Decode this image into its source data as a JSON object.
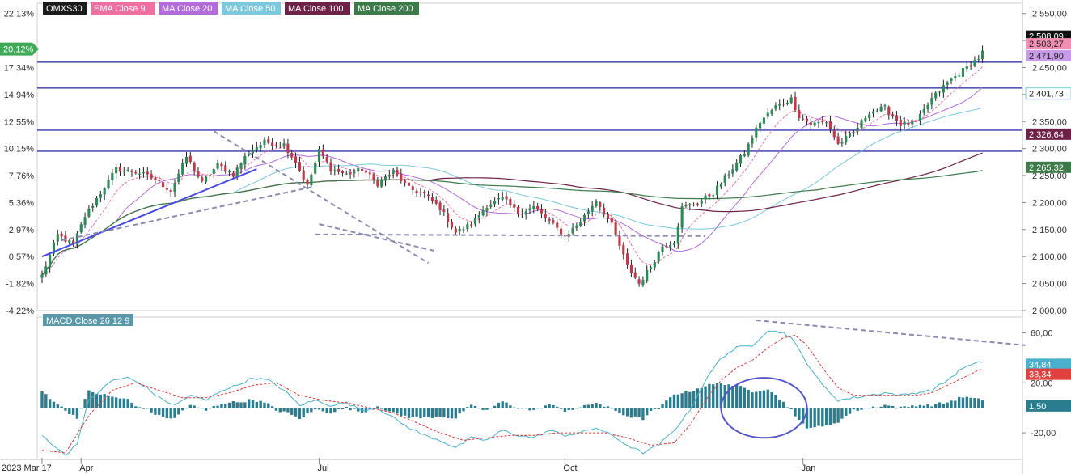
{
  "legend": {
    "items": [
      {
        "label": "OMXS30",
        "color": "#000000"
      },
      {
        "label": "EMA Close 9",
        "color": "#ee6fa0"
      },
      {
        "label": "MA Close 20",
        "color": "#b26bd9"
      },
      {
        "label": "MA Close 50",
        "color": "#7cc8dc"
      },
      {
        "label": "MA Close 100",
        "color": "#6e2146"
      },
      {
        "label": "MA Close 200",
        "color": "#3d7a4a"
      }
    ]
  },
  "macd_legend": {
    "label": "MACD Close 26 12 9",
    "color": "#5a97a8"
  },
  "colors": {
    "candle_up": "#2e8b57",
    "candle_down": "#c0394b",
    "wick": "#222222",
    "hline": "#5555bb",
    "trendline": "#4a4ae0",
    "dashed": "#8a8ab0",
    "macd_line": "#4ab0cc",
    "signal_line": "#d83a3a",
    "histogram": "#2a7d8e"
  },
  "chart_data": [
    {
      "type": "candlestick",
      "title": "OMXS30",
      "yaxis_right_ticks": [
        "2 550,00",
        "2 500,00",
        "2 450,00",
        "2 400,00",
        "2 350,00",
        "2 300,00",
        "2 250,00",
        "2 200,00",
        "2 150,00",
        "2 100,00",
        "2 050,00",
        "2 000,00"
      ],
      "yaxis_right_values": [
        2550,
        2500,
        2450,
        2400,
        2350,
        2300,
        2250,
        2200,
        2150,
        2100,
        2050,
        2000
      ],
      "yaxis_left_ticks": [
        "22,13%",
        "17,34%",
        "14,94%",
        "12,55%",
        "10,15%",
        "7,76%",
        "5,36%",
        "2,97%",
        "0,57%",
        "-1,82%",
        "-4,22%"
      ],
      "yaxis_left_values": [
        2550,
        2450,
        2400,
        2350,
        2300,
        2250,
        2200,
        2150,
        2100,
        2050,
        2000
      ],
      "current_pct_label": "20,12%",
      "ylim": [
        2000,
        2560
      ],
      "xaxis_labels": [
        {
          "label": "2023 Mar 17",
          "index": 0
        },
        {
          "label": "Apr",
          "index": 10
        },
        {
          "label": "Jul",
          "index": 71
        },
        {
          "label": "Oct",
          "index": 134
        },
        {
          "label": "Jan",
          "index": 195
        }
      ],
      "n_bars": 242,
      "anchors": [
        [
          0,
          2065
        ],
        [
          4,
          2140
        ],
        [
          8,
          2122
        ],
        [
          11,
          2175
        ],
        [
          15,
          2218
        ],
        [
          19,
          2262
        ],
        [
          25,
          2255
        ],
        [
          29,
          2242
        ],
        [
          33,
          2222
        ],
        [
          37,
          2285
        ],
        [
          41,
          2236
        ],
        [
          45,
          2270
        ],
        [
          49,
          2252
        ],
        [
          53,
          2295
        ],
        [
          57,
          2312
        ],
        [
          62,
          2308
        ],
        [
          65,
          2275
        ],
        [
          68,
          2230
        ],
        [
          71,
          2296
        ],
        [
          74,
          2262
        ],
        [
          78,
          2252
        ],
        [
          82,
          2262
        ],
        [
          86,
          2235
        ],
        [
          90,
          2258
        ],
        [
          94,
          2226
        ],
        [
          98,
          2215
        ],
        [
          102,
          2190
        ],
        [
          106,
          2145
        ],
        [
          110,
          2160
        ],
        [
          114,
          2195
        ],
        [
          118,
          2208
        ],
        [
          122,
          2180
        ],
        [
          126,
          2192
        ],
        [
          130,
          2165
        ],
        [
          134,
          2138
        ],
        [
          138,
          2165
        ],
        [
          142,
          2205
        ],
        [
          146,
          2158
        ],
        [
          150,
          2082
        ],
        [
          153,
          2050
        ],
        [
          156,
          2082
        ],
        [
          159,
          2120
        ],
        [
          162,
          2128
        ],
        [
          164,
          2190
        ],
        [
          168,
          2200
        ],
        [
          172,
          2218
        ],
        [
          176,
          2255
        ],
        [
          180,
          2292
        ],
        [
          184,
          2350
        ],
        [
          188,
          2378
        ],
        [
          192,
          2392
        ],
        [
          194,
          2360
        ],
        [
          197,
          2345
        ],
        [
          201,
          2350
        ],
        [
          204,
          2308
        ],
        [
          208,
          2330
        ],
        [
          212,
          2368
        ],
        [
          216,
          2375
        ],
        [
          220,
          2345
        ],
        [
          224,
          2348
        ],
        [
          228,
          2392
        ],
        [
          232,
          2422
        ],
        [
          236,
          2445
        ],
        [
          240,
          2468
        ],
        [
          243,
          2498
        ],
        [
          246,
          2532
        ],
        [
          248,
          2508
        ]
      ],
      "current_price": "2 508,09",
      "value_tags": [
        {
          "label": "2 508,09",
          "value": 2508.09,
          "series": "OMXS30"
        },
        {
          "label": "2 503,27",
          "value": 2494,
          "series": "EMA Close 9"
        },
        {
          "label": "2 471,90",
          "value": 2471.9,
          "series": "MA Close 20"
        },
        {
          "label": "2 401,73",
          "value": 2401.73,
          "series": "MA Close 50"
        },
        {
          "label": "2 326,64",
          "value": 2326.64,
          "series": "MA Close 100"
        },
        {
          "label": "2 265,32",
          "value": 2265.32,
          "series": "MA Close 200"
        }
      ],
      "horizontal_lines": [
        2460,
        2412,
        2334,
        2295
      ],
      "trendlines": [
        {
          "style": "solid",
          "points": [
            [
              0,
              2100
            ],
            [
              55,
              2262
            ]
          ]
        },
        {
          "style": "dashed",
          "points": [
            [
              5,
              2130
            ],
            [
              70,
              2230
            ]
          ]
        },
        {
          "style": "dashed",
          "points": [
            [
              44,
              2332
            ],
            [
              99,
              2088
            ]
          ]
        },
        {
          "style": "dashed",
          "points": [
            [
              71,
              2160
            ],
            [
              101,
              2110
            ]
          ]
        },
        {
          "style": "dashed",
          "points": [
            [
              70,
              2141
            ],
            [
              170,
              2138
            ]
          ]
        }
      ]
    },
    {
      "type": "line",
      "title": "MACD Close 26 12 9",
      "yaxis_ticks": [
        "60,00",
        "20,00",
        "-20,00"
      ],
      "yaxis_values": [
        60,
        20,
        -20
      ],
      "ylim": [
        -40,
        70
      ],
      "macd_anchors": [
        [
          0,
          -22
        ],
        [
          3,
          -30
        ],
        [
          6,
          -38
        ],
        [
          9,
          -28
        ],
        [
          12,
          6
        ],
        [
          15,
          14
        ],
        [
          18,
          22
        ],
        [
          22,
          24
        ],
        [
          26,
          18
        ],
        [
          30,
          8
        ],
        [
          34,
          2
        ],
        [
          38,
          10
        ],
        [
          42,
          6
        ],
        [
          46,
          14
        ],
        [
          50,
          18
        ],
        [
          54,
          24
        ],
        [
          58,
          22
        ],
        [
          62,
          14
        ],
        [
          66,
          2
        ],
        [
          70,
          6
        ],
        [
          74,
          2
        ],
        [
          78,
          4
        ],
        [
          82,
          -2
        ],
        [
          86,
          0
        ],
        [
          90,
          -8
        ],
        [
          94,
          -16
        ],
        [
          98,
          -22
        ],
        [
          102,
          -26
        ],
        [
          106,
          -32
        ],
        [
          110,
          -24
        ],
        [
          114,
          -26
        ],
        [
          118,
          -18
        ],
        [
          122,
          -22
        ],
        [
          126,
          -24
        ],
        [
          130,
          -18
        ],
        [
          134,
          -22
        ],
        [
          138,
          -20
        ],
        [
          142,
          -16
        ],
        [
          146,
          -22
        ],
        [
          150,
          -30
        ],
        [
          154,
          -36
        ],
        [
          158,
          -30
        ],
        [
          162,
          -18
        ],
        [
          166,
          -2
        ],
        [
          170,
          22
        ],
        [
          174,
          40
        ],
        [
          178,
          48
        ],
        [
          182,
          50
        ],
        [
          186,
          62
        ],
        [
          190,
          60
        ],
        [
          192,
          56
        ],
        [
          196,
          36
        ],
        [
          200,
          18
        ],
        [
          204,
          6
        ],
        [
          208,
          8
        ],
        [
          212,
          10
        ],
        [
          216,
          12
        ],
        [
          220,
          10
        ],
        [
          224,
          12
        ],
        [
          228,
          14
        ],
        [
          232,
          22
        ],
        [
          236,
          32
        ],
        [
          240,
          36
        ],
        [
          244,
          40
        ],
        [
          247,
          34
        ]
      ],
      "signal_anchors": [
        [
          0,
          -34
        ],
        [
          6,
          -36
        ],
        [
          12,
          -6
        ],
        [
          18,
          14
        ],
        [
          24,
          20
        ],
        [
          30,
          14
        ],
        [
          36,
          8
        ],
        [
          42,
          8
        ],
        [
          48,
          12
        ],
        [
          54,
          18
        ],
        [
          60,
          20
        ],
        [
          66,
          10
        ],
        [
          72,
          6
        ],
        [
          78,
          4
        ],
        [
          84,
          0
        ],
        [
          90,
          -4
        ],
        [
          96,
          -12
        ],
        [
          102,
          -20
        ],
        [
          108,
          -26
        ],
        [
          114,
          -24
        ],
        [
          120,
          -22
        ],
        [
          126,
          -22
        ],
        [
          132,
          -20
        ],
        [
          138,
          -20
        ],
        [
          144,
          -20
        ],
        [
          150,
          -24
        ],
        [
          156,
          -30
        ],
        [
          162,
          -28
        ],
        [
          166,
          -14
        ],
        [
          170,
          6
        ],
        [
          174,
          22
        ],
        [
          178,
          32
        ],
        [
          182,
          38
        ],
        [
          186,
          48
        ],
        [
          190,
          56
        ],
        [
          193,
          58
        ],
        [
          196,
          50
        ],
        [
          200,
          32
        ],
        [
          204,
          16
        ],
        [
          208,
          10
        ],
        [
          212,
          10
        ],
        [
          216,
          10
        ],
        [
          220,
          10
        ],
        [
          224,
          10
        ],
        [
          228,
          12
        ],
        [
          232,
          18
        ],
        [
          236,
          24
        ],
        [
          240,
          30
        ],
        [
          244,
          34
        ],
        [
          247,
          33
        ]
      ],
      "tags": [
        {
          "label": "34,84",
          "value": 34.84,
          "series": "MACD"
        },
        {
          "label": "33,34",
          "value": 33.34,
          "series": "Signal"
        },
        {
          "label": "1,50",
          "value": 1.5,
          "series": "Histogram"
        }
      ],
      "dashed_trend": [
        [
          183,
          70
        ],
        [
          252,
          50
        ]
      ],
      "ellipse_center": [
        185,
        0
      ],
      "ellipse_radius": [
        11,
        24
      ]
    }
  ]
}
